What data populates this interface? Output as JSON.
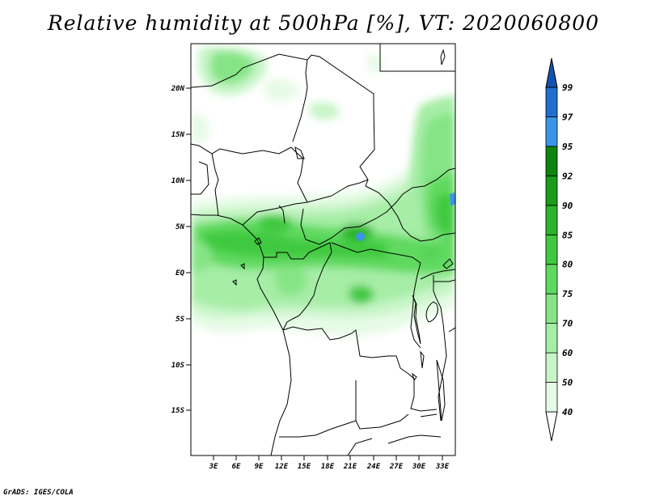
{
  "title": "Relative humidity at 500hPa [%], VT: 2020060800",
  "credit": "GrADS: IGES/COLA",
  "map": {
    "lat_ticks": [
      "20N",
      "15N",
      "10N",
      "5N",
      "EQ",
      "5S",
      "10S",
      "15S"
    ],
    "lon_ticks": [
      "3E",
      "6E",
      "9E",
      "12E",
      "15E",
      "18E",
      "21E",
      "24E",
      "27E",
      "30E",
      "33E"
    ]
  },
  "colorbar": {
    "levels": [
      "40",
      "50",
      "60",
      "70",
      "75",
      "80",
      "85",
      "90",
      "92",
      "95",
      "97",
      "99"
    ],
    "colors": [
      "#ffffff",
      "#e6fbe6",
      "#c8f5c8",
      "#a6eda6",
      "#86e486",
      "#5fd95f",
      "#3fc93f",
      "#2ab52a",
      "#1a9b1a",
      "#0e850e",
      "#3a95e6",
      "#1e6fd0",
      "#1452b0"
    ]
  }
}
